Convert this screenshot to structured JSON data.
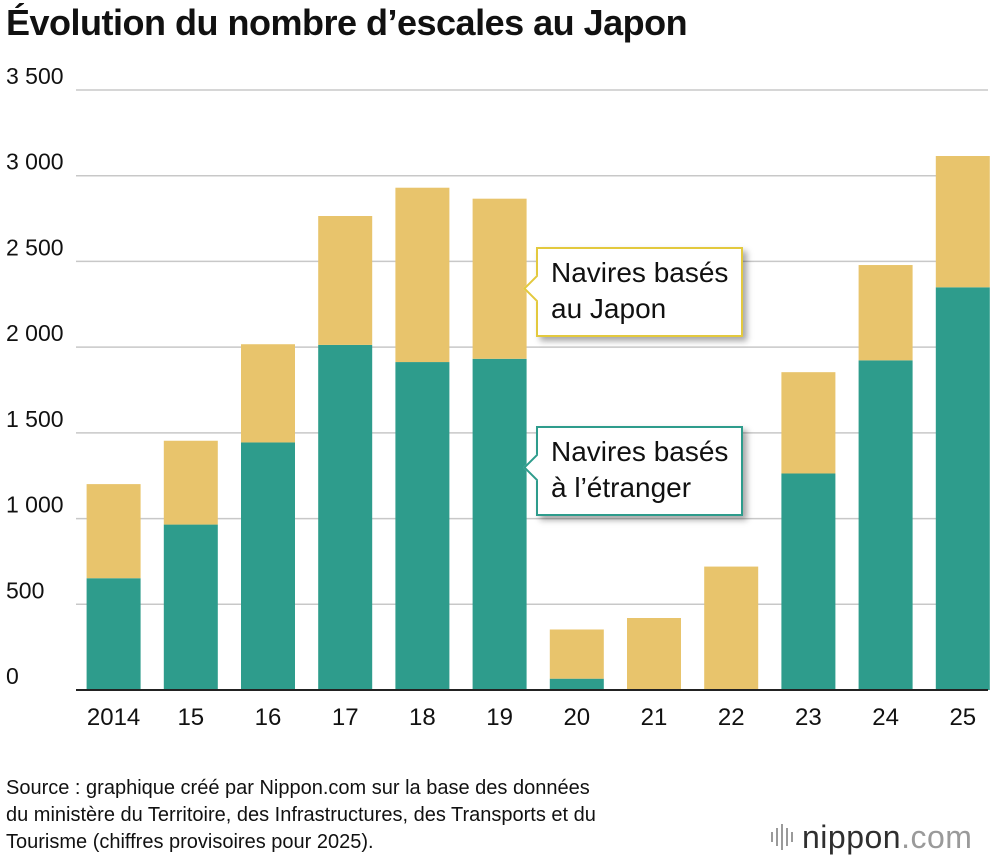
{
  "chart_data": {
    "type": "bar",
    "stacked": true,
    "title": "Évolution du nombre d’escales au Japon",
    "categories": [
      "2014",
      "15",
      "16",
      "17",
      "18",
      "19",
      "20",
      "21",
      "22",
      "23",
      "24",
      "25"
    ],
    "series": [
      {
        "name": "Navires basés à l’étranger",
        "color": "#2e9c8c",
        "values": [
          652,
          965,
          1444,
          2013,
          1913,
          1932,
          66,
          0,
          0,
          1263,
          1923,
          2349
        ]
      },
      {
        "name": "Navires basés au Japon",
        "color": "#e8c46c",
        "values": [
          549,
          489,
          573,
          752,
          1017,
          934,
          287,
          420,
          720,
          591,
          556,
          766
        ]
      }
    ],
    "ylim": [
      0,
      3500
    ],
    "yticks": [
      0,
      500,
      1000,
      1500,
      2000,
      2500,
      3000,
      3500
    ],
    "ytick_labels": [
      "0",
      "500",
      "1 000",
      "1 500",
      "2 000",
      "2 500",
      "3 000",
      "3 500"
    ],
    "grid": true,
    "legend": "callouts",
    "callout_japan": [
      "Navires basés",
      "au Japon"
    ],
    "callout_foreign": [
      "Navires basés",
      "à l’étranger"
    ]
  },
  "footer": {
    "source_lines": [
      "Source : graphique créé par Nippon.com sur la base des données",
      "du ministère du Territoire, des Infrastructures, des Transports et du",
      "Tourisme (chiffres provisoires pour 2025)."
    ],
    "brand_name": "nippon",
    "brand_suffix": ".com"
  }
}
